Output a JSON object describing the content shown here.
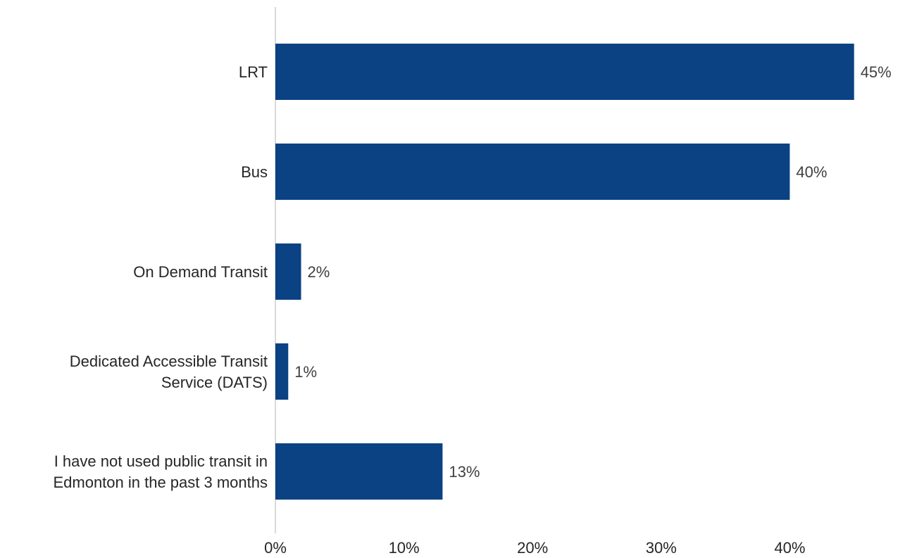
{
  "chart_data": {
    "type": "bar",
    "orientation": "horizontal",
    "categories": [
      [
        "LRT"
      ],
      [
        "Bus"
      ],
      [
        "On Demand Transit"
      ],
      [
        "Dedicated Accessible Transit",
        "Service (DATS)"
      ],
      [
        "I have not used public transit in",
        "Edmonton in the past 3 months"
      ]
    ],
    "values": [
      45,
      40,
      2,
      1,
      13
    ],
    "value_labels": [
      "45%",
      "40%",
      "2%",
      "1%",
      "13%"
    ],
    "xlim": [
      0,
      45
    ],
    "xticks": [
      0,
      10,
      20,
      30,
      40
    ],
    "xtick_labels": [
      "0%",
      "10%",
      "20%",
      "30%",
      "40%"
    ],
    "bar_color": "#0b4283",
    "axis_color": "#d9d9d9",
    "grid": false,
    "title": "",
    "xlabel": "",
    "ylabel": ""
  }
}
